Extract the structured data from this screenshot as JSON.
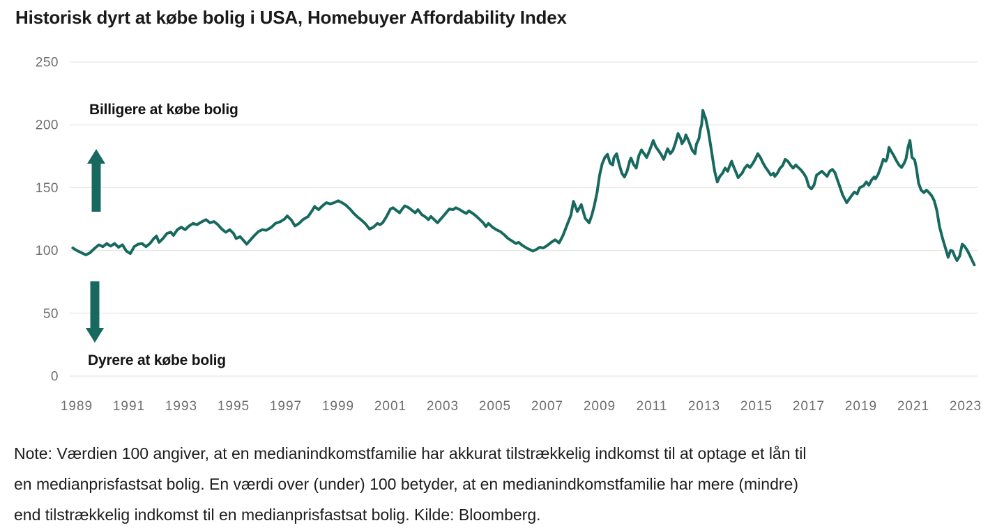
{
  "title": "Historisk dyrt at købe bolig i USA, Homebuyer Affordability Index",
  "annotations": {
    "cheaper": "Billigere at købe bolig",
    "more_expensive": "Dyrere at købe bolig"
  },
  "note_lines": [
    "Note: Værdien 100 angiver, at en medianindkomstfamilie har akkurat tilstrækkelig indkomst til at optage et lån til",
    "en medianprisfastsat bolig. En værdi over (under) 100 betyder, at en medianindkomstfamilie har mere (mindre)",
    "end tilstrækkelig indkomst til en medianprisfastsat bolig. Kilde: Bloomberg."
  ],
  "chart_data": {
    "type": "line",
    "title": "Historisk dyrt at købe bolig i USA, Homebuyer Affordability Index",
    "series_name": "Homebuyer Affordability Index",
    "xlabel": "",
    "ylabel": "",
    "x_ticks": [
      "1989",
      "1991",
      "1993",
      "1995",
      "1997",
      "1999",
      "2001",
      "2003",
      "2005",
      "2007",
      "2009",
      "2011",
      "2013",
      "2015",
      "2017",
      "2019",
      "2021",
      "2023"
    ],
    "x_base_year": 1989,
    "x_tick_step_years": 2,
    "y_ticks": [
      0,
      50,
      100,
      150,
      200,
      250
    ],
    "ylim": [
      0,
      250
    ],
    "xlim": [
      1988.85,
      2023.45
    ],
    "grid": true,
    "legend": "none",
    "line_color": "#17695f",
    "grid_color": "#e0e0e0",
    "axis_label_color": "#6e6e6e",
    "points": [
      [
        1988.85,
        102
      ],
      [
        1989.0,
        100
      ],
      [
        1989.15,
        98.5
      ],
      [
        1989.35,
        96.5
      ],
      [
        1989.5,
        98
      ],
      [
        1989.7,
        102
      ],
      [
        1989.85,
        104.5
      ],
      [
        1990.0,
        103
      ],
      [
        1990.15,
        105.5
      ],
      [
        1990.3,
        103.5
      ],
      [
        1990.45,
        105.5
      ],
      [
        1990.6,
        102.5
      ],
      [
        1990.75,
        104.5
      ],
      [
        1990.9,
        99.5
      ],
      [
        1991.05,
        97.5
      ],
      [
        1991.2,
        103
      ],
      [
        1991.35,
        105
      ],
      [
        1991.5,
        105.5
      ],
      [
        1991.65,
        103
      ],
      [
        1991.8,
        105.5
      ],
      [
        1991.95,
        109.5
      ],
      [
        1992.05,
        111.5
      ],
      [
        1992.15,
        106.5
      ],
      [
        1992.3,
        109.5
      ],
      [
        1992.45,
        113.5
      ],
      [
        1992.6,
        114.5
      ],
      [
        1992.7,
        112
      ],
      [
        1992.85,
        116.5
      ],
      [
        1993.0,
        118.5
      ],
      [
        1993.15,
        116.5
      ],
      [
        1993.3,
        119.5
      ],
      [
        1993.45,
        121.5
      ],
      [
        1993.6,
        120.5
      ],
      [
        1993.8,
        123
      ],
      [
        1993.95,
        124.5
      ],
      [
        1994.1,
        122
      ],
      [
        1994.25,
        123
      ],
      [
        1994.4,
        120.5
      ],
      [
        1994.55,
        117
      ],
      [
        1994.7,
        114.5
      ],
      [
        1994.85,
        116.5
      ],
      [
        1995.0,
        113.5
      ],
      [
        1995.1,
        109.5
      ],
      [
        1995.25,
        111
      ],
      [
        1995.4,
        107.5
      ],
      [
        1995.5,
        105
      ],
      [
        1995.65,
        108.5
      ],
      [
        1995.8,
        112
      ],
      [
        1995.95,
        115
      ],
      [
        1996.1,
        116.5
      ],
      [
        1996.25,
        116
      ],
      [
        1996.45,
        118.5
      ],
      [
        1996.6,
        121.5
      ],
      [
        1996.8,
        123
      ],
      [
        1996.95,
        125
      ],
      [
        1997.05,
        127.5
      ],
      [
        1997.2,
        124.5
      ],
      [
        1997.35,
        119.5
      ],
      [
        1997.5,
        121.5
      ],
      [
        1997.65,
        124.5
      ],
      [
        1997.85,
        127
      ],
      [
        1998.0,
        131.5
      ],
      [
        1998.1,
        135
      ],
      [
        1998.25,
        132.5
      ],
      [
        1998.4,
        135.5
      ],
      [
        1998.55,
        138
      ],
      [
        1998.7,
        137
      ],
      [
        1998.85,
        138
      ],
      [
        1999.0,
        139.5
      ],
      [
        1999.15,
        138
      ],
      [
        1999.3,
        136
      ],
      [
        1999.45,
        133
      ],
      [
        1999.6,
        129.5
      ],
      [
        1999.75,
        126.5
      ],
      [
        1999.9,
        124
      ],
      [
        2000.05,
        121
      ],
      [
        2000.2,
        117
      ],
      [
        2000.35,
        118.5
      ],
      [
        2000.5,
        121.5
      ],
      [
        2000.6,
        120.5
      ],
      [
        2000.7,
        122
      ],
      [
        2000.85,
        127
      ],
      [
        2001.0,
        133
      ],
      [
        2001.1,
        134
      ],
      [
        2001.25,
        131.5
      ],
      [
        2001.35,
        130
      ],
      [
        2001.45,
        133
      ],
      [
        2001.55,
        135.5
      ],
      [
        2001.7,
        134
      ],
      [
        2001.85,
        131.5
      ],
      [
        2001.95,
        130
      ],
      [
        2002.05,
        132.5
      ],
      [
        2002.2,
        128.5
      ],
      [
        2002.35,
        126.5
      ],
      [
        2002.45,
        124.5
      ],
      [
        2002.55,
        127
      ],
      [
        2002.7,
        124
      ],
      [
        2002.8,
        122
      ],
      [
        2002.9,
        124.5
      ],
      [
        2003.05,
        128
      ],
      [
        2003.15,
        130.5
      ],
      [
        2003.25,
        133
      ],
      [
        2003.4,
        132.5
      ],
      [
        2003.5,
        134
      ],
      [
        2003.65,
        132.5
      ],
      [
        2003.8,
        130.5
      ],
      [
        2003.9,
        129.5
      ],
      [
        2004.0,
        131.5
      ],
      [
        2004.15,
        129.5
      ],
      [
        2004.3,
        127
      ],
      [
        2004.45,
        124
      ],
      [
        2004.55,
        122
      ],
      [
        2004.65,
        119
      ],
      [
        2004.75,
        121.5
      ],
      [
        2004.9,
        118.5
      ],
      [
        2005.05,
        116.5
      ],
      [
        2005.2,
        115
      ],
      [
        2005.35,
        112.5
      ],
      [
        2005.5,
        109.5
      ],
      [
        2005.65,
        107.5
      ],
      [
        2005.8,
        105.5
      ],
      [
        2005.9,
        106.5
      ],
      [
        2006.05,
        104
      ],
      [
        2006.2,
        102
      ],
      [
        2006.35,
        100.5
      ],
      [
        2006.45,
        99.5
      ],
      [
        2006.6,
        101
      ],
      [
        2006.7,
        102.5
      ],
      [
        2006.85,
        102
      ],
      [
        2007.0,
        104
      ],
      [
        2007.15,
        106.5
      ],
      [
        2007.3,
        108.5
      ],
      [
        2007.45,
        106
      ],
      [
        2007.6,
        112
      ],
      [
        2007.75,
        120
      ],
      [
        2007.9,
        128
      ],
      [
        2008.0,
        139
      ],
      [
        2008.15,
        131
      ],
      [
        2008.3,
        136.5
      ],
      [
        2008.45,
        125.5
      ],
      [
        2008.6,
        122
      ],
      [
        2008.7,
        128
      ],
      [
        2008.8,
        136
      ],
      [
        2008.9,
        146
      ],
      [
        2009.0,
        160
      ],
      [
        2009.1,
        169
      ],
      [
        2009.2,
        174
      ],
      [
        2009.3,
        176.5
      ],
      [
        2009.4,
        169.5
      ],
      [
        2009.5,
        168
      ],
      [
        2009.55,
        174
      ],
      [
        2009.65,
        177
      ],
      [
        2009.75,
        168.5
      ],
      [
        2009.85,
        161.5
      ],
      [
        2009.95,
        158.5
      ],
      [
        2010.05,
        163
      ],
      [
        2010.15,
        171
      ],
      [
        2010.2,
        173.5
      ],
      [
        2010.3,
        168.5
      ],
      [
        2010.4,
        165.5
      ],
      [
        2010.5,
        175.5
      ],
      [
        2010.6,
        180
      ],
      [
        2010.7,
        177
      ],
      [
        2010.8,
        174
      ],
      [
        2010.9,
        179
      ],
      [
        2011.0,
        184.5
      ],
      [
        2011.05,
        187.5
      ],
      [
        2011.15,
        182.5
      ],
      [
        2011.25,
        179.5
      ],
      [
        2011.35,
        176.5
      ],
      [
        2011.45,
        172.5
      ],
      [
        2011.55,
        178
      ],
      [
        2011.6,
        181
      ],
      [
        2011.7,
        177
      ],
      [
        2011.8,
        179.5
      ],
      [
        2011.9,
        185.5
      ],
      [
        2012.0,
        193
      ],
      [
        2012.1,
        189
      ],
      [
        2012.15,
        185
      ],
      [
        2012.25,
        188
      ],
      [
        2012.3,
        192
      ],
      [
        2012.4,
        187.5
      ],
      [
        2012.5,
        182
      ],
      [
        2012.55,
        179.5
      ],
      [
        2012.65,
        177
      ],
      [
        2012.7,
        184.5
      ],
      [
        2012.8,
        189
      ],
      [
        2012.85,
        196
      ],
      [
        2012.9,
        200
      ],
      [
        2012.95,
        211.5
      ],
      [
        2013.0,
        208
      ],
      [
        2013.05,
        205.5
      ],
      [
        2013.15,
        196
      ],
      [
        2013.25,
        183
      ],
      [
        2013.3,
        176.5
      ],
      [
        2013.4,
        163
      ],
      [
        2013.5,
        154.5
      ],
      [
        2013.6,
        159
      ],
      [
        2013.7,
        161.5
      ],
      [
        2013.8,
        165.5
      ],
      [
        2013.9,
        163
      ],
      [
        2013.95,
        166
      ],
      [
        2014.05,
        171
      ],
      [
        2014.1,
        168
      ],
      [
        2014.2,
        163
      ],
      [
        2014.3,
        158
      ],
      [
        2014.45,
        161.5
      ],
      [
        2014.55,
        165.5
      ],
      [
        2014.65,
        168
      ],
      [
        2014.75,
        166
      ],
      [
        2014.85,
        169
      ],
      [
        2014.95,
        172.5
      ],
      [
        2015.05,
        177
      ],
      [
        2015.15,
        174
      ],
      [
        2015.25,
        169.5
      ],
      [
        2015.35,
        166
      ],
      [
        2015.45,
        163
      ],
      [
        2015.55,
        160
      ],
      [
        2015.65,
        161.5
      ],
      [
        2015.7,
        159
      ],
      [
        2015.8,
        161.5
      ],
      [
        2015.9,
        165.5
      ],
      [
        2016.0,
        167.5
      ],
      [
        2016.1,
        172.5
      ],
      [
        2016.2,
        171
      ],
      [
        2016.3,
        168
      ],
      [
        2016.4,
        165.5
      ],
      [
        2016.5,
        168
      ],
      [
        2016.6,
        166
      ],
      [
        2016.7,
        164
      ],
      [
        2016.8,
        161.5
      ],
      [
        2016.9,
        158
      ],
      [
        2017.0,
        151
      ],
      [
        2017.1,
        149
      ],
      [
        2017.2,
        152
      ],
      [
        2017.3,
        160
      ],
      [
        2017.4,
        161.5
      ],
      [
        2017.5,
        163
      ],
      [
        2017.6,
        161
      ],
      [
        2017.7,
        159
      ],
      [
        2017.8,
        163
      ],
      [
        2017.9,
        164.5
      ],
      [
        2018.0,
        162
      ],
      [
        2018.1,
        156
      ],
      [
        2018.2,
        150
      ],
      [
        2018.3,
        144
      ],
      [
        2018.45,
        138
      ],
      [
        2018.55,
        141
      ],
      [
        2018.65,
        144
      ],
      [
        2018.75,
        146.5
      ],
      [
        2018.85,
        145
      ],
      [
        2018.95,
        150
      ],
      [
        2019.1,
        151.5
      ],
      [
        2019.2,
        154.5
      ],
      [
        2019.3,
        152
      ],
      [
        2019.4,
        156
      ],
      [
        2019.5,
        158.5
      ],
      [
        2019.55,
        157
      ],
      [
        2019.65,
        160.5
      ],
      [
        2019.75,
        166
      ],
      [
        2019.85,
        172.5
      ],
      [
        2019.95,
        171
      ],
      [
        2020.0,
        173.5
      ],
      [
        2020.07,
        182
      ],
      [
        2020.15,
        179
      ],
      [
        2020.25,
        175.5
      ],
      [
        2020.35,
        171.5
      ],
      [
        2020.45,
        168
      ],
      [
        2020.55,
        166
      ],
      [
        2020.65,
        169.5
      ],
      [
        2020.72,
        173
      ],
      [
        2020.8,
        182.5
      ],
      [
        2020.87,
        187.5
      ],
      [
        2020.95,
        174
      ],
      [
        2021.05,
        172
      ],
      [
        2021.12,
        165
      ],
      [
        2021.2,
        153.5
      ],
      [
        2021.3,
        148
      ],
      [
        2021.4,
        146
      ],
      [
        2021.5,
        148
      ],
      [
        2021.6,
        146
      ],
      [
        2021.7,
        143.5
      ],
      [
        2021.8,
        139.5
      ],
      [
        2021.9,
        131.5
      ],
      [
        2022.0,
        119
      ],
      [
        2022.1,
        111
      ],
      [
        2022.18,
        105
      ],
      [
        2022.27,
        99
      ],
      [
        2022.33,
        94.5
      ],
      [
        2022.42,
        100
      ],
      [
        2022.5,
        99.5
      ],
      [
        2022.6,
        94.5
      ],
      [
        2022.67,
        92
      ],
      [
        2022.77,
        95.5
      ],
      [
        2022.87,
        105
      ],
      [
        2022.95,
        103.5
      ],
      [
        2023.05,
        100.5
      ],
      [
        2023.15,
        96.5
      ],
      [
        2023.25,
        92
      ],
      [
        2023.33,
        88.5
      ]
    ]
  }
}
